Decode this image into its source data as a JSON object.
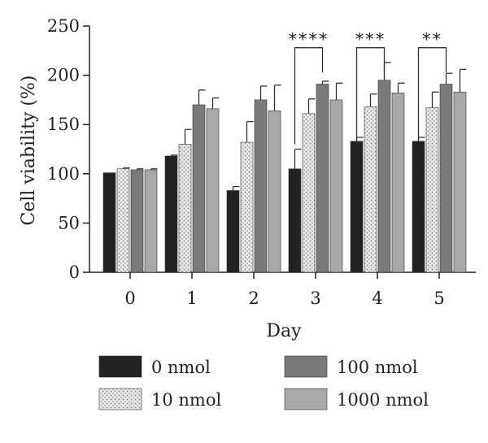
{
  "chart_data": {
    "type": "bar",
    "xlabel": "Day",
    "ylabel": "Cell viability (%)",
    "ylim": [
      0,
      250
    ],
    "yticks": [
      "0",
      "50",
      "100",
      "150",
      "200",
      "250"
    ],
    "categories": [
      "0",
      "1",
      "2",
      "3",
      "4",
      "5"
    ],
    "series": [
      {
        "name": "0 nmol",
        "fill": "#222222",
        "pattern": "solid",
        "values": [
          101,
          118,
          83,
          105,
          133,
          133
        ],
        "errors": [
          0,
          1,
          4,
          20,
          4,
          4
        ]
      },
      {
        "name": "10 nmol",
        "fill": "#d9d9d9",
        "pattern": "dots",
        "values": [
          105,
          130,
          132,
          161,
          168,
          167
        ],
        "errors": [
          1,
          15,
          21,
          15,
          13,
          16
        ]
      },
      {
        "name": "100 nmol",
        "fill": "#7a7a7a",
        "pattern": "solid",
        "values": [
          104,
          170,
          175,
          191,
          195,
          191
        ],
        "errors": [
          1,
          15,
          14,
          3,
          18,
          11
        ]
      },
      {
        "name": "1000 nmol",
        "fill": "#a8a8a8",
        "pattern": "solid",
        "values": [
          104,
          166,
          164,
          175,
          182,
          183
        ],
        "errors": [
          1,
          11,
          26,
          17,
          10,
          23
        ]
      }
    ],
    "significance": [
      {
        "day": "3",
        "from": "0 nmol",
        "to": "100 nmol",
        "label": "****"
      },
      {
        "day": "4",
        "from": "0 nmol",
        "to": "100 nmol",
        "label": "***"
      },
      {
        "day": "5",
        "from": "0 nmol",
        "to": "100 nmol",
        "label": "**"
      }
    ],
    "legend": {
      "placement": "bottom",
      "items": [
        "0 nmol",
        "10 nmol",
        "100 nmol",
        "1000 nmol"
      ]
    },
    "grid": false
  }
}
